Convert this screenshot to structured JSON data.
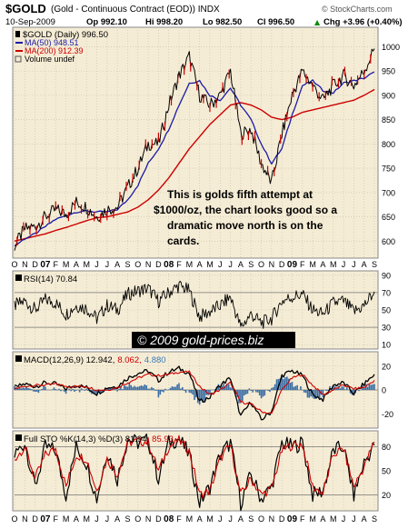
{
  "header": {
    "symbol": "$GOLD",
    "description": "(Gold - Continuous Contract (EOD)) INDX",
    "date": "10-Sep-2009",
    "open": "Op 992.10",
    "high": "Hi 998.20",
    "low": "Lo 982.50",
    "close": "Cl 996.50",
    "change": "Chg +3.96 (+0.40%)",
    "change_arrow": "▲",
    "brand": "© StockCharts.com"
  },
  "legend": {
    "price": "$GOLD (Daily) 996.50",
    "ma50": "MA(50) 948.51",
    "ma200": "MA(200) 912.39",
    "volume": "Volume undef"
  },
  "annotation": [
    "This is golds fifth attempt at",
    "$1000/oz, the chart looks good so a",
    "dramatic move north is on the",
    "cards."
  ],
  "watermark": "© 2009 gold-prices.biz",
  "panels": {
    "rsi": {
      "label": "RSI(14) 70.84"
    },
    "macd": {
      "label_main": "MACD(12,26,9) 12.942,",
      "label_signal": "8.062,",
      "label_hist": "4.880"
    },
    "sto": {
      "label_main": "Full STO %K(14,3) %D(3) 81.94,",
      "label_d": "85.93"
    }
  },
  "colors": {
    "panel_bg": "#f5ecd5",
    "price": "#000000",
    "up_candle": "#000000",
    "down_candle": "#cc0000",
    "ma50": "#1a1aa6",
    "ma200": "#cc0000",
    "macd_hist": "#3a6ea5",
    "grid": "#c8bfa8"
  },
  "chart_data": [
    {
      "type": "line",
      "title": "$GOLD (Daily)",
      "x_axis": {
        "tick_labels": [
          "O",
          "N",
          "D",
          "07",
          "F",
          "M",
          "A",
          "M",
          "J",
          "J",
          "A",
          "S",
          "O",
          "N",
          "D",
          "08",
          "F",
          "M",
          "A",
          "M",
          "J",
          "J",
          "A",
          "S",
          "O",
          "N",
          "D",
          "09",
          "F",
          "M",
          "A",
          "M",
          "J",
          "J",
          "A",
          "S"
        ]
      },
      "y_axis_ticks": [
        600,
        650,
        700,
        750,
        800,
        850,
        900,
        950,
        1000
      ],
      "ylim": [
        565,
        1040
      ],
      "months": [
        "2006-10",
        "2006-11",
        "2006-12",
        "2007-01",
        "2007-02",
        "2007-03",
        "2007-04",
        "2007-05",
        "2007-06",
        "2007-07",
        "2007-08",
        "2007-09",
        "2007-10",
        "2007-11",
        "2007-12",
        "2008-01",
        "2008-02",
        "2008-03",
        "2008-04",
        "2008-05",
        "2008-06",
        "2008-07",
        "2008-08",
        "2008-09",
        "2008-10",
        "2008-11",
        "2008-12",
        "2009-01",
        "2009-02",
        "2009-03",
        "2009-04",
        "2009-05",
        "2009-06",
        "2009-07",
        "2009-08",
        "2009-09"
      ],
      "series": [
        {
          "name": "$GOLD (Daily)",
          "values": [
            590,
            625,
            630,
            650,
            665,
            655,
            680,
            670,
            650,
            665,
            670,
            710,
            750,
            800,
            800,
            880,
            940,
            980,
            900,
            880,
            900,
            950,
            820,
            830,
            760,
            720,
            820,
            900,
            950,
            920,
            890,
            920,
            940,
            920,
            950,
            996
          ]
        },
        {
          "name": "MA(50)",
          "values": [
            590,
            605,
            615,
            630,
            645,
            652,
            660,
            662,
            660,
            660,
            665,
            685,
            715,
            760,
            790,
            830,
            880,
            925,
            930,
            900,
            890,
            915,
            880,
            850,
            800,
            760,
            790,
            860,
            920,
            930,
            910,
            905,
            925,
            930,
            935,
            948
          ]
        },
        {
          "name": "MA(200)",
          "values": [
            600,
            605,
            610,
            615,
            622,
            628,
            635,
            642,
            648,
            650,
            655,
            660,
            670,
            685,
            705,
            730,
            760,
            790,
            815,
            840,
            860,
            880,
            885,
            880,
            870,
            855,
            850,
            855,
            865,
            870,
            875,
            880,
            885,
            890,
            900,
            912
          ]
        }
      ]
    },
    {
      "type": "line",
      "title": "RSI(14)",
      "y_axis_ticks": [
        10,
        30,
        50,
        70,
        90
      ],
      "ylim": [
        5,
        95
      ],
      "series": [
        {
          "name": "RSI(14)",
          "values": [
            55,
            60,
            50,
            62,
            58,
            45,
            55,
            52,
            40,
            55,
            50,
            68,
            72,
            75,
            60,
            70,
            78,
            72,
            42,
            48,
            55,
            65,
            30,
            45,
            35,
            40,
            60,
            65,
            68,
            50,
            45,
            58,
            60,
            48,
            55,
            71
          ]
        }
      ]
    },
    {
      "type": "line",
      "title": "MACD(12,26,9)",
      "y_axis_ticks": [
        -20,
        0,
        20
      ],
      "ylim": [
        -32,
        32
      ],
      "series": [
        {
          "name": "MACD",
          "values": [
            2,
            5,
            3,
            6,
            5,
            1,
            4,
            2,
            -3,
            2,
            3,
            10,
            14,
            16,
            8,
            15,
            18,
            14,
            -10,
            -6,
            4,
            10,
            -22,
            -10,
            -25,
            -18,
            12,
            16,
            12,
            -4,
            -8,
            4,
            6,
            -3,
            5,
            13
          ]
        },
        {
          "name": "Signal",
          "values": [
            1,
            3,
            4,
            4,
            5,
            3,
            3,
            3,
            0,
            0,
            2,
            6,
            10,
            13,
            12,
            13,
            15,
            15,
            3,
            -4,
            0,
            6,
            -10,
            -12,
            -18,
            -20,
            0,
            10,
            13,
            4,
            -4,
            0,
            4,
            1,
            2,
            8
          ]
        }
      ]
    },
    {
      "type": "line",
      "title": "Full STO %K(14,3) %D(3)",
      "y_axis_ticks": [
        20,
        50,
        80
      ],
      "ylim": [
        0,
        100
      ],
      "series": [
        {
          "name": "%K",
          "values": [
            70,
            85,
            30,
            80,
            75,
            20,
            80,
            60,
            15,
            75,
            40,
            90,
            85,
            88,
            40,
            85,
            90,
            70,
            10,
            30,
            70,
            85,
            10,
            45,
            15,
            30,
            85,
            80,
            85,
            20,
            25,
            75,
            80,
            20,
            60,
            82
          ]
        },
        {
          "name": "%D",
          "values": [
            65,
            80,
            40,
            70,
            78,
            30,
            70,
            65,
            25,
            65,
            45,
            85,
            87,
            86,
            50,
            80,
            88,
            75,
            20,
            25,
            65,
            82,
            20,
            40,
            20,
            28,
            75,
            82,
            83,
            30,
            22,
            70,
            78,
            30,
            55,
            86
          ]
        }
      ]
    }
  ]
}
